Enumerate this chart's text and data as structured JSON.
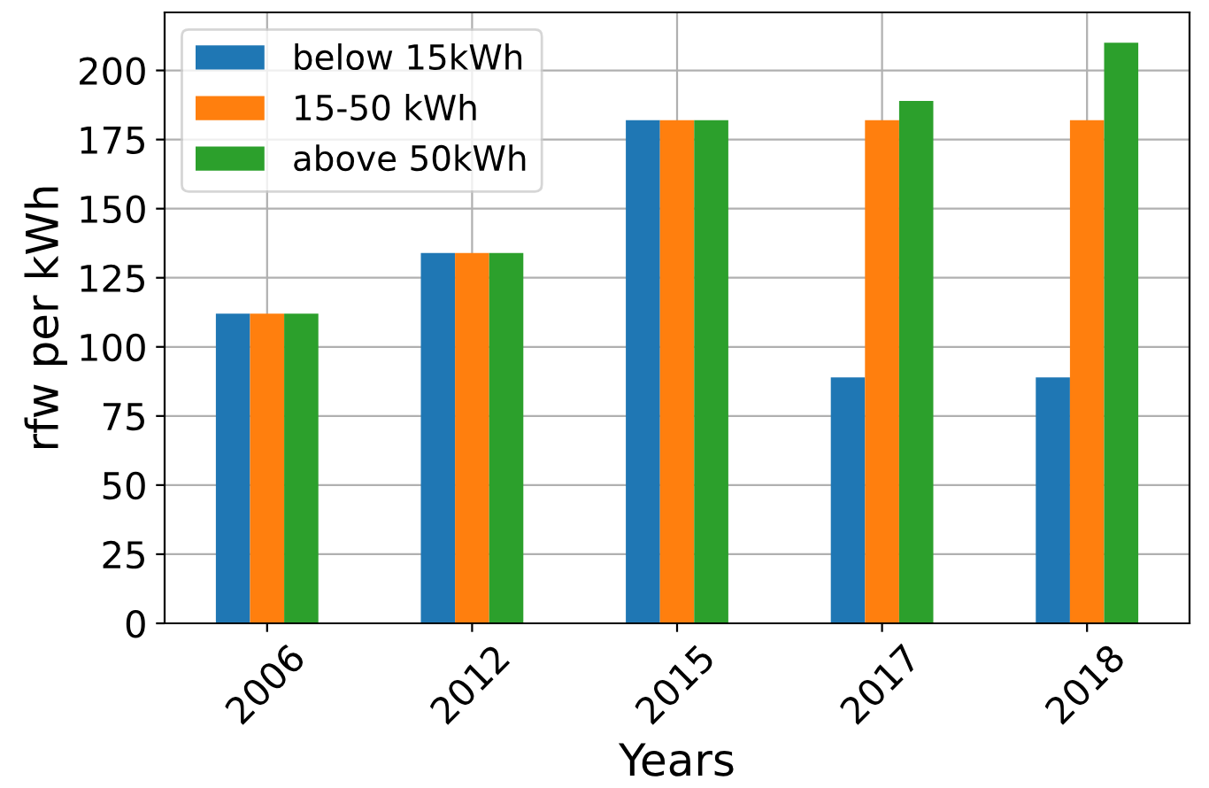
{
  "chart_data": {
    "type": "bar",
    "xlabel": "Years",
    "ylabel": "rfw per kWh",
    "categories": [
      "2006",
      "2012",
      "2015",
      "2017",
      "2018"
    ],
    "series": [
      {
        "name": "below 15kWh",
        "color": "#1f77b4",
        "values": [
          112,
          134,
          182,
          89,
          89
        ]
      },
      {
        "name": "15-50 kWh",
        "color": "#ff7f0e",
        "values": [
          112,
          134,
          182,
          182,
          182
        ]
      },
      {
        "name": "above 50kWh",
        "color": "#2ca02c",
        "values": [
          112,
          134,
          182,
          189,
          210
        ]
      }
    ],
    "ylim": [
      0,
      221
    ],
    "yticks": [
      0,
      25,
      50,
      75,
      100,
      125,
      150,
      175,
      200
    ],
    "grid": true,
    "legend": "top left"
  }
}
